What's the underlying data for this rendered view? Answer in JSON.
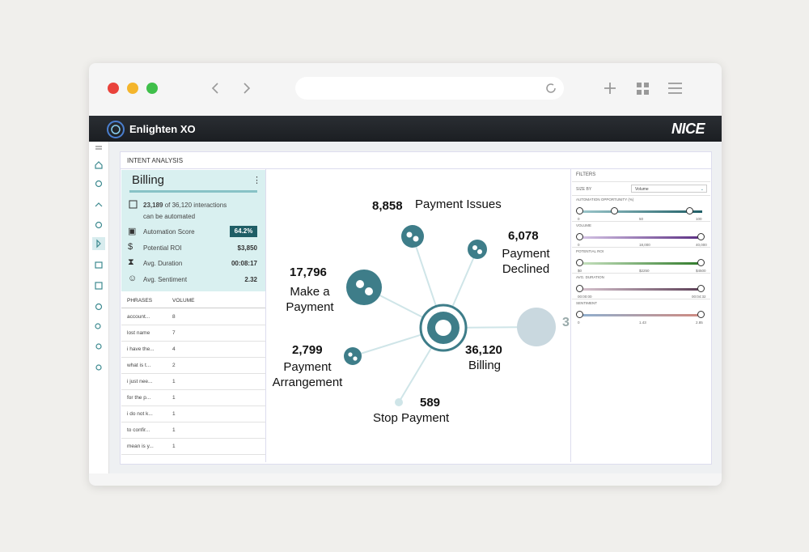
{
  "header": {
    "app_name": "Enlighten XO",
    "brand": "NICE"
  },
  "panel_title": "INTENT ANALYSIS",
  "intent_card": {
    "title": "Billing",
    "automatable_count": "23,189",
    "automatable_text": "of 36,120 interactions",
    "automatable_note": "can be automated",
    "metrics": [
      {
        "label": "Automation Score",
        "value": "64.2%"
      },
      {
        "label": "Potential ROI",
        "value": "$3,850"
      },
      {
        "label": "Avg. Duration",
        "value": "00:08:17"
      },
      {
        "label": "Avg. Sentiment",
        "value": "2.32"
      }
    ]
  },
  "phrases_table": {
    "columns": [
      "PHRASES",
      "VOLUME"
    ],
    "rows": [
      [
        "account...",
        "8"
      ],
      [
        "lost name",
        "7"
      ],
      [
        "i have the...",
        "4"
      ],
      [
        "what is t...",
        "2"
      ],
      [
        "i just nee...",
        "1"
      ],
      [
        "for the p...",
        "1"
      ],
      [
        "i do not k...",
        "1"
      ],
      [
        "to confir...",
        "1"
      ],
      [
        "mean is y...",
        "1"
      ]
    ]
  },
  "graph": {
    "nodes": [
      {
        "count": "8,858",
        "label": "Payment Issues"
      },
      {
        "count": "6,078",
        "label": "Payment Declined"
      },
      {
        "count": "17,796",
        "label": "Make a Payment"
      },
      {
        "count": "2,799",
        "label": "Payment Arrangement"
      },
      {
        "count": "36,120",
        "label": "Billing"
      },
      {
        "count": "589",
        "label": "Stop Payment"
      }
    ],
    "partial_label": "3"
  },
  "filters": {
    "title": "FILTERS",
    "size_by_label": "SIZE BY",
    "size_by_value": "Volume",
    "sliders": [
      {
        "label": "AUTOMATION OPPORTUNITY (%)",
        "ticks": [
          "0",
          "50",
          "100"
        ]
      },
      {
        "label": "VOLUME",
        "ticks": [
          "0",
          "18,000",
          "40,000"
        ]
      },
      {
        "label": "POTENTIAL ROI",
        "ticks": [
          "$0",
          "$2250",
          "$4500"
        ]
      },
      {
        "label": "AVG. DURATION",
        "ticks": [
          "00:00:00",
          "00:04:32"
        ]
      },
      {
        "label": "SENTIMENT",
        "ticks": [
          "0",
          "1.43",
          "2.85"
        ]
      }
    ]
  }
}
